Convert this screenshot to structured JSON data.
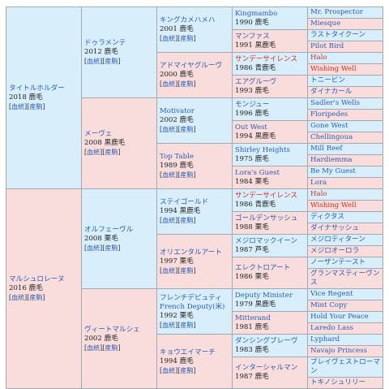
{
  "gen1": [
    {
      "name": "タイトルホルダー",
      "year": "2018 鹿毛",
      "links": [
        "[",
        "血統",
        "][",
        "産駒",
        "]"
      ]
    },
    {
      "name": "マルシュロレーヌ",
      "year": "2016 鹿毛",
      "links": [
        "[",
        "血統",
        "][",
        "産駒",
        "]"
      ]
    }
  ],
  "gen2": [
    {
      "name": "ドゥラメンテ",
      "year": "2012 鹿毛",
      "links": [
        "[",
        "血統",
        "][",
        "産駒",
        "]"
      ]
    },
    {
      "name": "メーヴェ",
      "year": "2008 黒鹿毛",
      "links": [
        "[",
        "血統",
        "][",
        "産駒",
        "]"
      ]
    },
    {
      "name": "オルフェーヴル",
      "year": "2008 栗毛",
      "links": [
        "[",
        "血統",
        "][",
        "産駒",
        "]"
      ]
    },
    {
      "name": "ヴィートマルシェ",
      "year": "2002 鹿毛",
      "links": [
        "[",
        "血統",
        "][",
        "産駒",
        "]"
      ]
    }
  ],
  "gen3": [
    {
      "name": "キングカメハメハ",
      "year": "2001 鹿毛",
      "links": [
        "[",
        "血統",
        "][",
        "産駒",
        "]"
      ]
    },
    {
      "name": "アドマイヤグルーヴ",
      "year": "2000 鹿毛",
      "links": [
        "[",
        "血統",
        "][",
        "産駒",
        "]"
      ]
    },
    {
      "name": "Motivator",
      "year": "2002 鹿毛",
      "links": [
        "[",
        "血統",
        "][",
        "産駒",
        "]"
      ]
    },
    {
      "name": "Top Table",
      "year": "1989 鹿毛",
      "links": [
        "[",
        "血統",
        "][",
        "産駒",
        "]"
      ]
    },
    {
      "name": "ステイゴールド",
      "year": "1994 黒鹿毛",
      "links": [
        "[",
        "血統",
        "][",
        "産駒",
        "]"
      ]
    },
    {
      "name": "オリエンタルアート",
      "year": "1997 栗毛",
      "links": [
        "[",
        "血統",
        "][",
        "産駒",
        "]"
      ]
    },
    {
      "name": "フレンチデピュティ",
      "name2": "French Deputy(米)",
      "year": "1992 栗毛",
      "links": [
        "[",
        "血統",
        "][",
        "産駒",
        "]"
      ]
    },
    {
      "name": "キョウエイマーチ",
      "year": "1994 鹿毛",
      "links": [
        "[",
        "血統",
        "][",
        "産駒",
        "]"
      ]
    }
  ],
  "gen4": [
    {
      "name": "Kingmambo",
      "year": "1990 鹿毛"
    },
    {
      "name": "マンファス",
      "year": "1991 黒鹿毛"
    },
    {
      "name": "サンデーサイレンス",
      "year": "1986 青鹿毛"
    },
    {
      "name": "エアグルーヴ",
      "year": "1993 鹿毛"
    },
    {
      "name": "モンジュー",
      "year": "1996 鹿毛"
    },
    {
      "name": "Out West",
      "year": "1994 黒鹿毛"
    },
    {
      "name": "Shirley Heights",
      "year": "1975 鹿毛"
    },
    {
      "name": "Lora's Guest",
      "year": "1984 栗毛"
    },
    {
      "name": "サンデーサイレンス",
      "year": "1986 青鹿毛"
    },
    {
      "name": "ゴールデンサッシュ",
      "year": "1988 栗毛"
    },
    {
      "name": "メジロマックイーン",
      "year": "1987 芦毛"
    },
    {
      "name": "エレクトロアート",
      "year": "1986 栗毛"
    },
    {
      "name": "Deputy Minister",
      "year": "1979 黒鹿毛"
    },
    {
      "name": "Mitterand",
      "year": "1981 鹿毛"
    },
    {
      "name": "ダンシングブレーヴ",
      "year": "1983 鹿毛"
    },
    {
      "name": "インターシャルマン",
      "year": "1987 鹿毛"
    }
  ],
  "gen5": [
    "Mr. Prospector",
    "Miesque",
    "ラストタイクーン",
    "Pilot Bird",
    "Halo",
    "Wishing Well",
    "トニービン",
    "ダイナカール",
    "Sadler's Wells",
    "Floripedes",
    "Gone West",
    "Chellingoua",
    "Mill Reef",
    "Hardiemma",
    "Be My Guest",
    "Lora",
    "Halo",
    "Wishing Well",
    "ディクタス",
    "ダイナサッシュ",
    "メジロティターン",
    "メジロオーロラ",
    "ノーザンテースト",
    "グランマスティーヴンス",
    "Vice Regent",
    "Mint Copy",
    "Hold Your Peace",
    "Laredo Lass",
    "Lyphard",
    "Navajo Princess",
    "ブレイヴェストローマン",
    "トキノシュリリー"
  ]
}
